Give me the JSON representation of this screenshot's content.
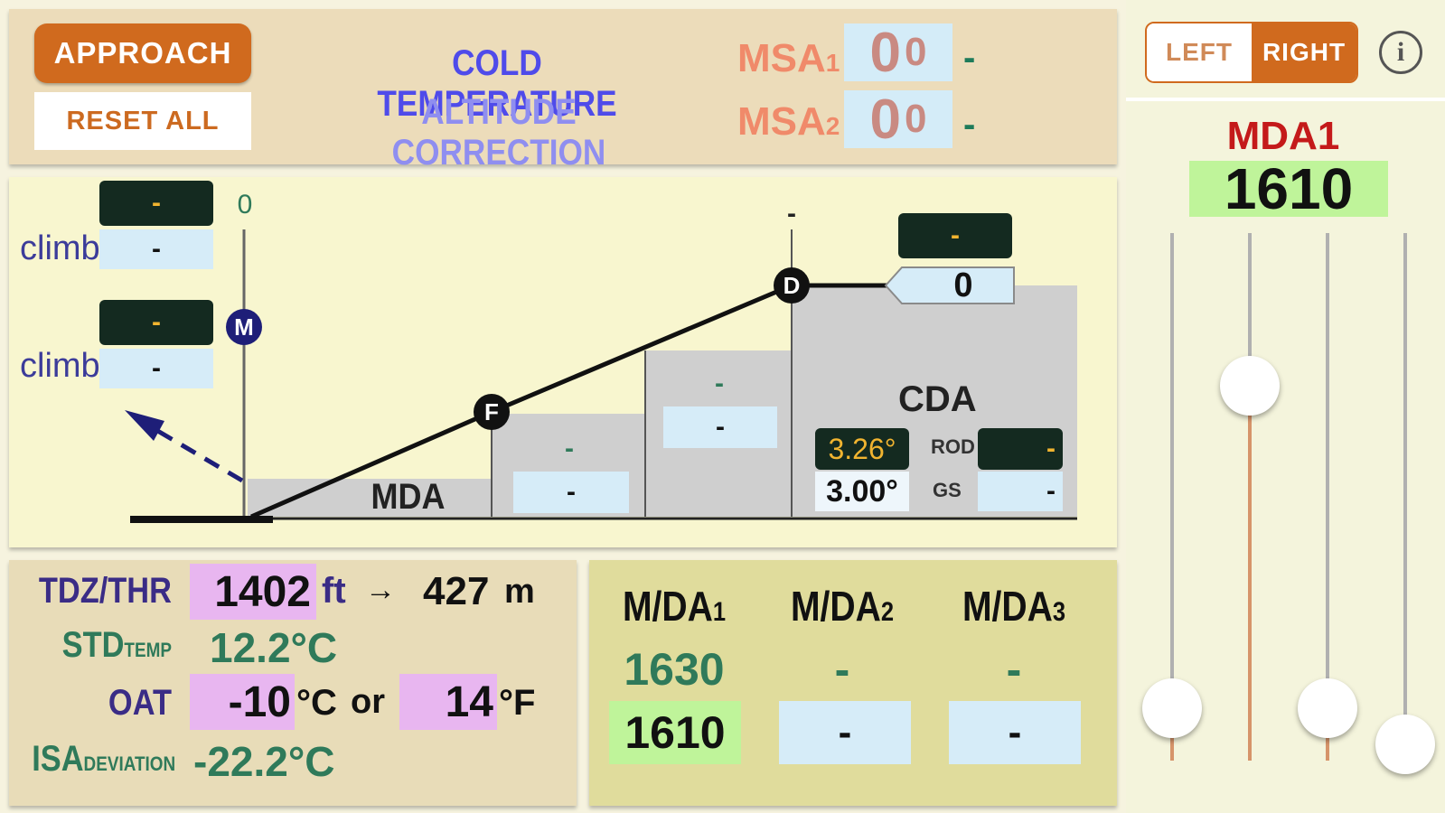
{
  "header": {
    "approach_label": "APPROACH",
    "reset_label": "RESET ALL",
    "title_line1": "COLD TEMPERATURE",
    "title_line2": "ALTITUDE CORRECTION",
    "msa": [
      {
        "label": "MSA",
        "sub": "1",
        "value_big": "0",
        "value_small": "0",
        "result": "-"
      },
      {
        "label": "MSA",
        "sub": "2",
        "value_big": "0",
        "value_small": "0",
        "result": "-"
      }
    ]
  },
  "diagram": {
    "missed": {
      "top_altitude": "0",
      "climb_label": "climb",
      "box1_dark": "-",
      "box1_light": "-",
      "box2_dark": "-",
      "box2_light": "-",
      "waypoint": "M"
    },
    "waypoints": {
      "final": "F",
      "descent": "D"
    },
    "step1": {
      "dark": "-",
      "light": "-"
    },
    "step2": {
      "dark": "-",
      "light": "-"
    },
    "d_top_label": "-",
    "d_alt": {
      "dark": "-",
      "light": "0"
    },
    "mda_label": "MDA",
    "cda": {
      "label": "CDA",
      "angle_corrected": "3.26°",
      "angle_nominal": "3.00°",
      "rod_label": "ROD",
      "rod_value": "-",
      "gs_label": "GS",
      "gs_value": "-"
    }
  },
  "temperature": {
    "tdz_label": "TDZ/THR",
    "tdz_ft": "1402",
    "ft_unit": "ft",
    "arrow": "→",
    "tdz_m": "427",
    "m_unit": "m",
    "std_label": "STD",
    "std_sub": "TEMP",
    "std_value": "12.2°C",
    "oat_label": "OAT",
    "oat_c": "-10",
    "c_unit": "°C",
    "or_label": "or",
    "oat_f": "14",
    "f_unit": "°F",
    "isa_label": "ISA",
    "isa_sub": "DEVIATION",
    "isa_value": "-22.2°C"
  },
  "mda_table": [
    {
      "label": "M/DA",
      "sub": "1",
      "published": "1630",
      "corrected": "1610"
    },
    {
      "label": "M/DA",
      "sub": "2",
      "published": "-",
      "corrected": "-"
    },
    {
      "label": "M/DA",
      "sub": "3",
      "published": "-",
      "corrected": "-"
    }
  ],
  "right_panel": {
    "left_label": "LEFT",
    "right_label": "RIGHT",
    "info_label": "i",
    "mda_title": "MDA1",
    "mda_value": "1610",
    "sliders": [
      0.1,
      0.71,
      0.1,
      0.03
    ]
  },
  "colors": {
    "accent_orange": "#d06a1e",
    "title_blue": "#4f4bea",
    "label_purple": "#3a2c86",
    "value_green": "#2f7a5a",
    "mda_red": "#c41a1a",
    "input_pink": "#e8b6f0",
    "highlight_green": "#bff49a"
  }
}
